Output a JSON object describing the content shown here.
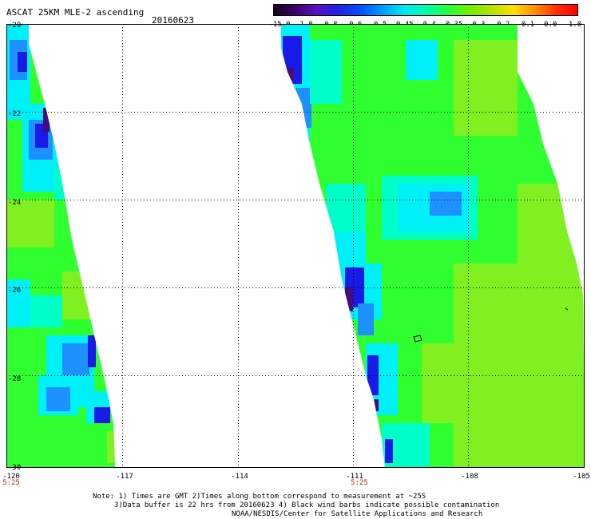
{
  "header": {
    "title": "ASCAT 25KM MLE-2 ascending",
    "date": "20160623"
  },
  "colorbar": {
    "labels": [
      "-15.0",
      "-1.0",
      "-0.8",
      "-0.6",
      "-0.5",
      "-0.45",
      "-0.4",
      "-0.35",
      "-0.3",
      "-0.2",
      "-0.1",
      "0.0",
      "1.0"
    ],
    "colors": [
      "#1a0018",
      "#3a006a",
      "#5a10c0",
      "#2020e0",
      "#0055ff",
      "#00a0ff",
      "#00e8f0",
      "#00ffb0",
      "#20ff40",
      "#70f000",
      "#b0e000",
      "#ffe000",
      "#ff9000",
      "#ff3000",
      "#ff0000"
    ]
  },
  "map": {
    "y_ticks": [
      "-20",
      "-22",
      "-24",
      "-26",
      "-28",
      "-30"
    ],
    "x_ticks": [
      "-120",
      "-117",
      "-114",
      "-111",
      "-108",
      "-105"
    ],
    "time_labels": [
      "5:25",
      "5:25"
    ],
    "colors": {
      "deep": "#4a0a7a",
      "blue": "#1a1ae8",
      "lightblue": "#1e90ff",
      "cyan": "#00f0f8",
      "aqua": "#00ffc8",
      "green": "#30ff30",
      "lime": "#80f020"
    }
  },
  "notes": {
    "line1": "Note: 1) Times are GMT 2)Times along bottom correspond to measurement at ~25S",
    "line2": "3)Data buffer is 22 hrs from 20160623 4) Black wind barbs indicate possible contamination",
    "line3": "NOAA/NESDIS/Center for Satellite Applications and Research"
  }
}
